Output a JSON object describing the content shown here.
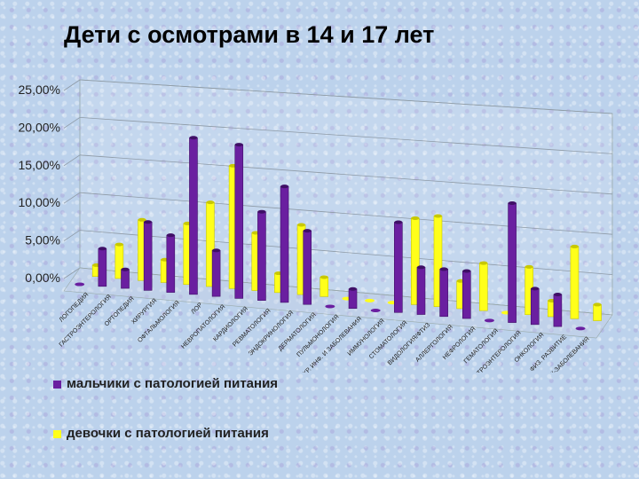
{
  "title": "Дети с осмотрами в 14 и 17 лет",
  "chart_data": {
    "type": "bar",
    "title": "Дети с осмотрами в 14 и 17 лет",
    "y_ticks": [
      "25,00%",
      "20,00%",
      "15,00%",
      "10,00%",
      "5,00%",
      "0,00%"
    ],
    "ylim": [
      0,
      25
    ],
    "categories": [
      "ЛОГОПЕДИЯ",
      "ГАСТРОЭНТЕРОЛОГИЯ",
      "ОРТОПЕДИЯ",
      "ХИРУРГИЯ",
      "ОФТАЛЬМОЛОГИЯ",
      "ЛОР",
      "НЕВРОПАТОЛОГИЯ",
      "КАРДИОЛОГИЯ",
      "РЕВМАТОЛОГИЯ",
      "ЭНДОКРИНОЛОГИЯ",
      "ДЕРМАТОЛОГИЯ",
      "ПУЛЬМОНОЛОГИЯ",
      "ХР. ИНФ. И ЗАБОЛЕВАНИЯ",
      "ИММУНОЛОГИЯ",
      "СТОМАТОЛОГИЯ",
      "ВИДОЛОГИЯ/ФТИЗ",
      "АЛЛЕРГОЛОГИЯ",
      "НЕФРОЛОГИЯ",
      "ГЕМАТОЛОГИЯ",
      "ГАСТРОЭНТЕРОЛОГИЯ",
      "ОНКОЛОГИЯ",
      "ФИЗ. РАЗВИТИЕ",
      "ДЕТСК-ЗАБОЛЕВАНИЯ"
    ],
    "series": [
      {
        "name": "мальчики с патологией питания",
        "color": "#6a1fa0",
        "values": [
          0,
          5,
          2.5,
          9,
          7.5,
          20.5,
          6,
          20,
          11.5,
          15,
          9.5,
          0,
          2.5,
          0,
          11.5,
          6,
          6,
          6,
          0,
          15,
          4.5,
          4,
          0
        ]
      },
      {
        "name": "девочки с патологией питания",
        "color": "#ffff1a",
        "values": [
          1.5,
          4.5,
          8,
          3,
          8,
          11,
          16,
          7.5,
          2.5,
          9,
          2.5,
          0,
          0,
          0,
          11,
          11.5,
          3.5,
          6,
          0,
          6,
          2,
          9,
          2
        ]
      }
    ]
  },
  "legend": {
    "boys": "мальчики с патологией питания",
    "girls": "девочки с патологией питания"
  }
}
